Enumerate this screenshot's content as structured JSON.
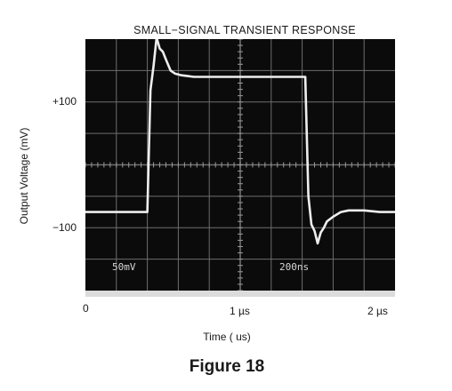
{
  "chart_data": {
    "type": "line",
    "title": "SMALL−SIGNAL TRANSIENT RESPONSE",
    "xlabel": "Time ( us)",
    "ylabel": "Output Voltage (mV)",
    "x_ticks": [
      {
        "label": "0",
        "value": 0
      },
      {
        "label": "1 µs",
        "value": 1
      },
      {
        "label": "2 µs",
        "value": 2
      }
    ],
    "y_ticks": [
      {
        "label": "+100",
        "value": 100
      },
      {
        "label": "−100",
        "value": -100
      }
    ],
    "xlim": [
      0,
      2
    ],
    "ylim": [
      -200,
      120
    ],
    "grid": true,
    "scope_labels": {
      "vertical_scale": "50mV",
      "time_scale": "200ns"
    },
    "series": [
      {
        "x": [
          0,
          0.4,
          0.42,
          0.44,
          0.46,
          0.48,
          0.5,
          0.52,
          0.55,
          0.58,
          0.62,
          0.66,
          0.7,
          0.8,
          0.9,
          1.0,
          1.2,
          1.3,
          1.42,
          1.44,
          1.46,
          1.48,
          1.5,
          1.52,
          1.54,
          1.56,
          1.6,
          1.65,
          1.7,
          1.8,
          1.9,
          2.0
        ],
        "y": [
          -100,
          -100,
          55,
          86,
          122,
          108,
          104,
          94,
          80,
          76,
          74,
          73,
          72,
          72,
          72,
          72,
          72,
          72,
          72,
          -80,
          -116,
          -124,
          -140,
          -126,
          -120,
          -112,
          -106,
          -100,
          -98,
          -98,
          -100,
          -100
        ]
      }
    ]
  },
  "figure": {
    "caption": "Figure 18",
    "screen_color": "#0b0b0b",
    "grid_color": "#6e6e6e",
    "trace_color": "#eeeeee"
  }
}
